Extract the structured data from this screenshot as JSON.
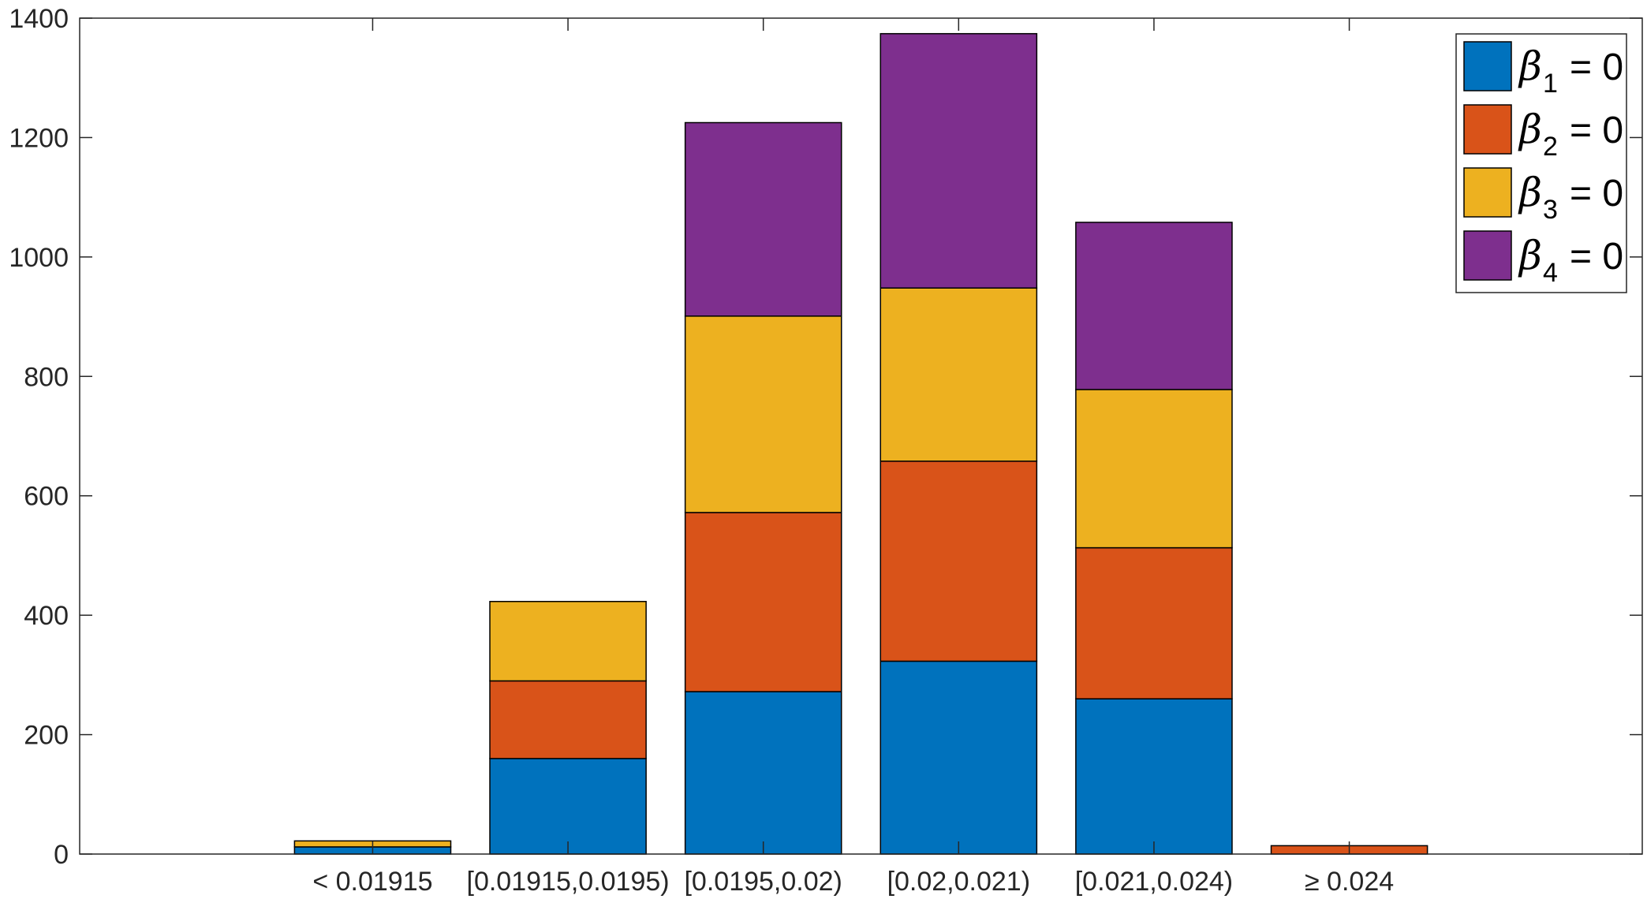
{
  "chart_data": {
    "type": "bar",
    "stacked": true,
    "title": "",
    "xlabel": "",
    "ylabel": "",
    "ylim": [
      0,
      1400
    ],
    "yticks": [
      0,
      200,
      400,
      600,
      800,
      1000,
      1200,
      1400
    ],
    "x_slots": 8,
    "categories": [
      "< 0.01915",
      "[0.01915,0.0195)",
      "[0.0195,0.02)",
      "[0.02,0.021)",
      "[0.021,0.024)",
      "≥ 0.024"
    ],
    "category_slots": [
      2,
      3,
      4,
      5,
      6,
      7
    ],
    "series": [
      {
        "name": "β 1 = 0",
        "symbol": "β",
        "sub": "1",
        "suffix": "= 0",
        "color": "#0072BD",
        "values": [
          12,
          160,
          272,
          323,
          260,
          0
        ]
      },
      {
        "name": "β 2 = 0",
        "symbol": "β",
        "sub": "2",
        "suffix": "= 0",
        "color": "#D95319",
        "values": [
          0,
          130,
          300,
          335,
          253,
          14
        ]
      },
      {
        "name": "β 3 = 0",
        "symbol": "β",
        "sub": "3",
        "suffix": "= 0",
        "color": "#EDB120",
        "values": [
          10,
          133,
          329,
          290,
          265,
          0
        ]
      },
      {
        "name": "β 4 = 0",
        "symbol": "β",
        "sub": "4",
        "suffix": "= 0",
        "color": "#7E2F8E",
        "values": [
          0,
          0,
          324,
          426,
          280,
          0
        ]
      }
    ],
    "legend_position": "top-right",
    "grid": false
  }
}
